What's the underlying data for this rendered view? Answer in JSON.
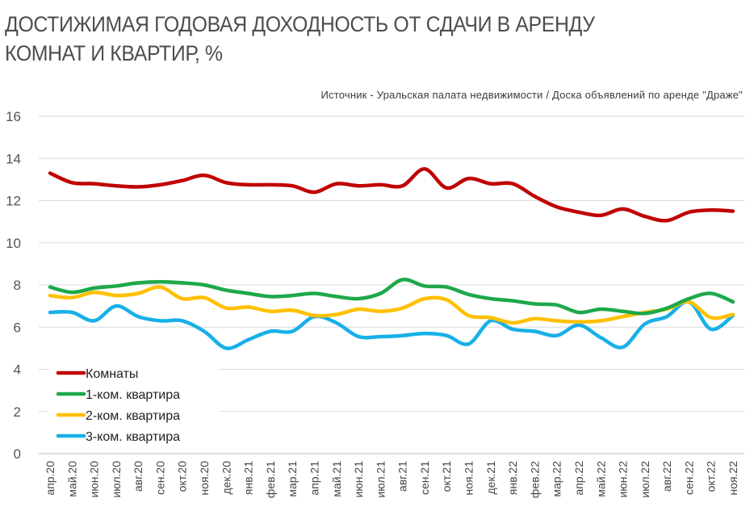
{
  "chart_data": {
    "type": "line",
    "title": "ДОСТИЖИМАЯ ГОДОВАЯ ДОХОДНОСТЬ ОТ СДАЧИ В АРЕНДУ КОМНАТ И КВАРТИР, %",
    "title_line1": "ДОСТИЖИМАЯ ГОДОВАЯ ДОХОДНОСТЬ ОТ СДАЧИ В АРЕНДУ",
    "title_line2": "КОМНАТ И КВАРТИР, %",
    "subtitle": "Источник - Уральская  палата недвижимости / Доска объявлений по аренде  \"Драже\"",
    "xlabel": "",
    "ylabel": "",
    "ylim": [
      0,
      16
    ],
    "yticks": [
      0,
      2,
      4,
      6,
      8,
      10,
      12,
      14,
      16
    ],
    "grid": "horizontal",
    "legend": "bottom-left",
    "categories": [
      "апр.20",
      "май.20",
      "июн.20",
      "июл.20",
      "авг.20",
      "сен.20",
      "окт.20",
      "ноя.20",
      "дек.20",
      "янв.21",
      "фев.21",
      "мар.21",
      "апр.21",
      "май.21",
      "июн.21",
      "июл.21",
      "авг.21",
      "сен.21",
      "окт.21",
      "ноя.21",
      "дек.21",
      "янв.22",
      "фев.22",
      "мар.22",
      "апр.22",
      "май.22",
      "июн.22",
      "июл.22",
      "авг.22",
      "сен.22",
      "окт.22",
      "ноя.22"
    ],
    "series": [
      {
        "name": "Комнаты",
        "color": "#c00000",
        "values": [
          13.3,
          12.85,
          12.8,
          12.7,
          12.65,
          12.75,
          12.95,
          13.2,
          12.85,
          12.75,
          12.75,
          12.7,
          12.4,
          12.8,
          12.7,
          12.75,
          12.7,
          13.5,
          12.6,
          13.05,
          12.8,
          12.8,
          12.2,
          11.7,
          11.45,
          11.3,
          11.6,
          11.25,
          11.05,
          11.45,
          11.55,
          11.5
        ]
      },
      {
        "name": "1-ком. квартира",
        "color": "#1ea84a",
        "values": [
          7.9,
          7.65,
          7.85,
          7.95,
          8.1,
          8.15,
          8.1,
          8.0,
          7.75,
          7.6,
          7.45,
          7.5,
          7.6,
          7.45,
          7.35,
          7.6,
          8.25,
          7.95,
          7.9,
          7.55,
          7.35,
          7.25,
          7.1,
          7.05,
          6.7,
          6.85,
          6.75,
          6.65,
          6.9,
          7.35,
          7.6,
          7.2
        ]
      },
      {
        "name": "2-ком. квартира",
        "color": "#ffc000",
        "values": [
          7.5,
          7.4,
          7.65,
          7.5,
          7.6,
          7.9,
          7.35,
          7.4,
          6.9,
          6.95,
          6.75,
          6.8,
          6.55,
          6.6,
          6.85,
          6.75,
          6.9,
          7.35,
          7.3,
          6.55,
          6.45,
          6.2,
          6.4,
          6.3,
          6.25,
          6.3,
          6.5,
          6.7,
          6.85,
          7.2,
          6.45,
          6.6
        ]
      },
      {
        "name": "3-ком. квартира",
        "color": "#18b0e8",
        "values": [
          6.7,
          6.7,
          6.3,
          7.0,
          6.5,
          6.3,
          6.3,
          5.8,
          5.0,
          5.4,
          5.8,
          5.8,
          6.5,
          6.2,
          5.55,
          5.55,
          5.6,
          5.7,
          5.6,
          5.2,
          6.3,
          5.9,
          5.8,
          5.6,
          6.1,
          5.5,
          5.05,
          6.15,
          6.5,
          7.2,
          5.9,
          6.55
        ]
      }
    ]
  }
}
